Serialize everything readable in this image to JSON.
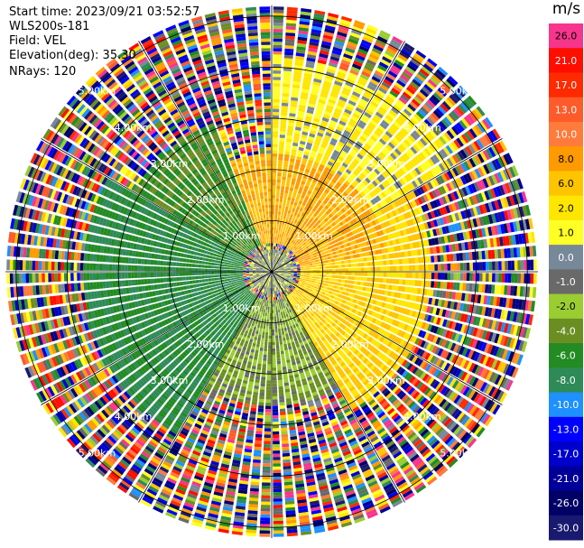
{
  "header": {
    "start_time": "Start time: 2023/09/21 03:52:57",
    "instrument": "WLS200s-181",
    "field": "Field: VEL",
    "elevation": "Elevation(deg): 35.30",
    "nrays": "NRays: 120"
  },
  "colorbar": {
    "unit": "m/s",
    "ticks": [
      "26.0",
      "21.0",
      "17.0",
      "13.0",
      "10.0",
      "8.0",
      "6.0",
      "2.0",
      "1.0",
      "0.0",
      "-1.0",
      "-2.0",
      "-4.0",
      "-6.0",
      "-8.0",
      "-10.0",
      "-13.0",
      "-17.0",
      "-21.0",
      "-26.0",
      "-30.0"
    ],
    "colors": [
      "#f7358c",
      "#ff0d00",
      "#ff2a00",
      "#ff5a2a",
      "#ff7b3c",
      "#ff9a00",
      "#ffc400",
      "#ffe600",
      "#ffff26",
      "#778899",
      "#696969",
      "#9acd32",
      "#6b8e23",
      "#228b22",
      "#2e8b57",
      "#1e90ff",
      "#0000ff",
      "#0000cd",
      "#000099",
      "#000066",
      "#191970"
    ]
  },
  "chart_data": {
    "type": "heatmap",
    "projection": "polar (PPI)",
    "field": "VEL",
    "units": "m/s",
    "nrays": 120,
    "elevation_deg": 35.3,
    "value_range": [
      -30.0,
      26.0
    ],
    "range_rings_km": [
      1.0,
      2.0,
      3.0,
      4.0,
      5.0
    ],
    "ring_labels": [
      "1.00km",
      "2.00km",
      "3.00km",
      "4.00km",
      "5.00km"
    ],
    "max_range_km": 5.0,
    "sectors": [
      {
        "azimuth_deg": [
          340,
          80
        ],
        "range_km": [
          0.5,
          2.2
        ],
        "typical_velocity": 8.0
      },
      {
        "azimuth_deg": [
          0,
          60
        ],
        "range_km": [
          2.2,
          4.0
        ],
        "typical_velocity": 2.0
      },
      {
        "azimuth_deg": [
          60,
          150
        ],
        "range_km": [
          0.5,
          3.0
        ],
        "typical_velocity": 6.0
      },
      {
        "azimuth_deg": [
          150,
          210
        ],
        "range_km": [
          0.5,
          2.5
        ],
        "typical_velocity": -2.0
      },
      {
        "azimuth_deg": [
          210,
          300
        ],
        "range_km": [
          0.5,
          3.5
        ],
        "typical_velocity": -6.0
      },
      {
        "azimuth_deg": [
          270,
          340
        ],
        "range_km": [
          0.5,
          3.0
        ],
        "typical_velocity": -4.0
      }
    ]
  }
}
